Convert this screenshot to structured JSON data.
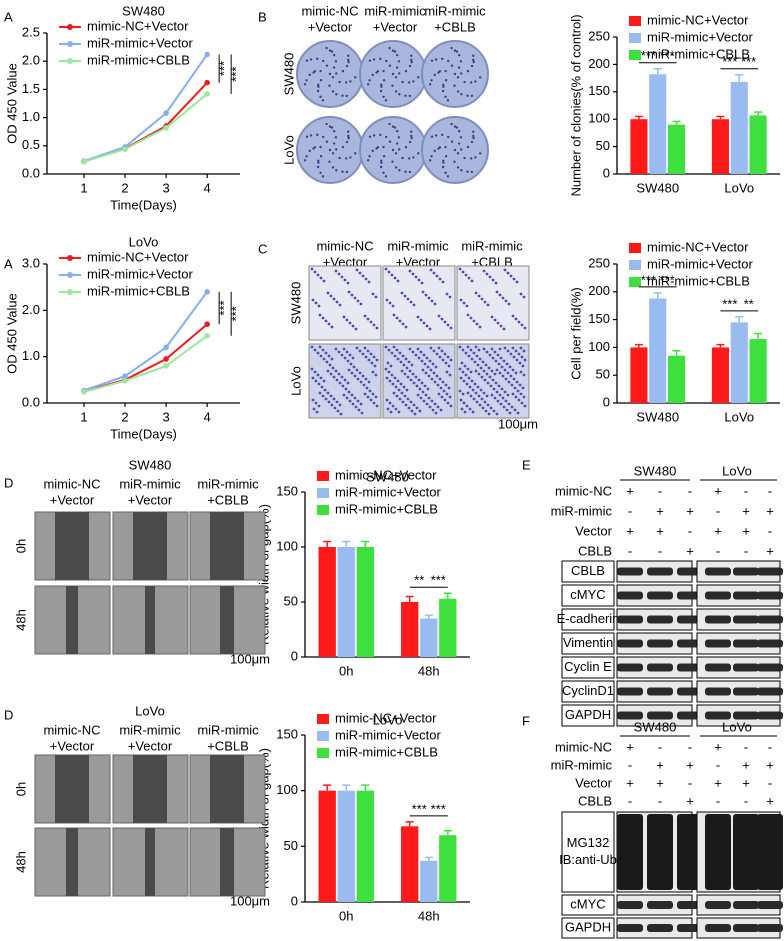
{
  "chart_data": [
    {
      "type": "line",
      "title": "SW480",
      "xlabel": "Time(Days)",
      "ylabel": "OD 450 Value",
      "legend": "upper left",
      "x": [
        1,
        2,
        3,
        4
      ],
      "xlim": [
        0.1,
        4.8
      ],
      "xticks": [
        1,
        2,
        3,
        4
      ],
      "ylim": [
        0,
        2.5
      ],
      "yticks": [
        {
          "value": 0,
          "label": "0.0"
        },
        0.5,
        {
          "value": 1,
          "label": "1.0"
        },
        1.5,
        {
          "value": 2,
          "label": "2.0"
        },
        2.5
      ],
      "series": [
        {
          "name": "mimic-NC+Vector",
          "color": "#ee1c1c",
          "values": [
            0.22,
            0.45,
            0.85,
            1.62
          ]
        },
        {
          "name": "miR-mimic+Vector",
          "color": "#86aef0",
          "values": [
            0.23,
            0.48,
            1.08,
            2.12
          ]
        },
        {
          "name": "miR-mimic+CBLB",
          "color": "#9be89b",
          "values": [
            0.22,
            0.44,
            0.82,
            1.42
          ]
        }
      ],
      "annotations": [
        "***",
        "***"
      ]
    },
    {
      "type": "line",
      "title": "LoVo",
      "xlabel": "Time(Days)",
      "ylabel": "OD 450 Value",
      "legend": "upper left",
      "x": [
        1,
        2,
        3,
        4
      ],
      "xlim": [
        0.1,
        4.8
      ],
      "xticks": [
        1,
        2,
        3,
        4
      ],
      "ylim": [
        0,
        3
      ],
      "yticks": [
        {
          "value": 0,
          "label": "0.0"
        },
        {
          "value": 1,
          "label": "1.0"
        },
        {
          "value": 2,
          "label": "2.0"
        },
        {
          "value": 3,
          "label": "3.0"
        }
      ],
      "series": [
        {
          "name": "mimic-NC+Vector",
          "color": "#ee1c1c",
          "values": [
            0.25,
            0.5,
            0.95,
            1.7
          ]
        },
        {
          "name": "miR-mimic+Vector",
          "color": "#86aef0",
          "values": [
            0.27,
            0.58,
            1.2,
            2.4
          ]
        },
        {
          "name": "miR-mimic+CBLB",
          "color": "#9be89b",
          "values": [
            0.24,
            0.48,
            0.8,
            1.45
          ]
        }
      ],
      "annotations": [
        "***",
        "***"
      ]
    },
    {
      "type": "bar",
      "ylabel": "Number of clonies(% of control)",
      "legend": "upper left",
      "categories": [
        "SW480",
        "LoVo"
      ],
      "ylim": [
        0,
        250
      ],
      "yticks": [
        0,
        50,
        100,
        150,
        200,
        250
      ],
      "series": [
        {
          "name": "mimic-NC+Vector",
          "color": "#ff1a1a",
          "values": [
            100,
            100
          ],
          "errors": [
            5,
            5
          ]
        },
        {
          "name": "miR-mimic+Vector",
          "color": "#99bbf0",
          "values": [
            182,
            168
          ],
          "errors": [
            10,
            13
          ]
        },
        {
          "name": "miR-mimic+CBLB",
          "color": "#3ee03e",
          "values": [
            90,
            107
          ],
          "errors": [
            6,
            6
          ]
        }
      ],
      "annotations": [
        "***",
        "***",
        "***",
        "***"
      ]
    },
    {
      "type": "bar",
      "ylabel": "Cell per field(%)",
      "legend": "upper left",
      "categories": [
        "SW480",
        "LoVo"
      ],
      "ylim": [
        0,
        250
      ],
      "yticks": [
        0,
        50,
        100,
        150,
        200,
        250
      ],
      "series": [
        {
          "name": "mimic-NC+Vector",
          "color": "#ff1a1a",
          "values": [
            100,
            100
          ],
          "errors": [
            5,
            5
          ]
        },
        {
          "name": "miR-mimic+Vector",
          "color": "#99bbf0",
          "values": [
            188,
            145
          ],
          "errors": [
            10,
            10
          ]
        },
        {
          "name": "miR-mimic+CBLB",
          "color": "#3ee03e",
          "values": [
            85,
            115
          ],
          "errors": [
            9,
            10
          ]
        }
      ],
      "annotations": [
        "***",
        "***",
        "***",
        "**"
      ]
    },
    {
      "type": "bar",
      "title": "SW480",
      "ylabel": "Relative width of gap(%)",
      "legend": "upper left",
      "categories": [
        "0h",
        "48h"
      ],
      "ylim": [
        0,
        150
      ],
      "yticks": [
        0,
        50,
        100,
        150
      ],
      "series": [
        {
          "name": "mimic-NC+Vector",
          "color": "#ff1a1a",
          "values": [
            100,
            50
          ],
          "errors": [
            5,
            5
          ]
        },
        {
          "name": "miR-mimic+Vector",
          "color": "#99bbf0",
          "values": [
            100,
            35
          ],
          "errors": [
            5,
            3
          ]
        },
        {
          "name": "miR-mimic+CBLB",
          "color": "#3ee03e",
          "values": [
            100,
            53
          ],
          "errors": [
            5,
            5
          ]
        }
      ],
      "annotations": [
        "**",
        "***"
      ]
    },
    {
      "type": "bar",
      "title": "LoVo",
      "ylabel": "Relative width of gap(%)",
      "legend": "upper left",
      "categories": [
        "0h",
        "48h"
      ],
      "ylim": [
        0,
        150
      ],
      "yticks": [
        0,
        50,
        100,
        150
      ],
      "series": [
        {
          "name": "mimic-NC+Vector",
          "color": "#ff1a1a",
          "values": [
            100,
            68
          ],
          "errors": [
            5,
            4
          ]
        },
        {
          "name": "miR-mimic+Vector",
          "color": "#99bbf0",
          "values": [
            100,
            37
          ],
          "errors": [
            5,
            3
          ]
        },
        {
          "name": "miR-mimic+CBLB",
          "color": "#3ee03e",
          "values": [
            100,
            60
          ],
          "errors": [
            5,
            4
          ]
        }
      ],
      "annotations": [
        "***",
        "***"
      ]
    }
  ],
  "figure": {
    "letters": [
      "A",
      "A",
      "B",
      "C",
      "D",
      "D",
      "E",
      "F"
    ],
    "colonies": {
      "columns": [
        [
          "mimic-NC",
          "+Vector"
        ],
        [
          "miR-mimic",
          "+Vector"
        ],
        [
          "miR-mimic",
          "+CBLB"
        ]
      ],
      "rows": [
        "SW480",
        "LoVo"
      ]
    },
    "transwell": {
      "columns": [
        [
          "mimic-NC",
          "+Vector"
        ],
        [
          "miR-mimic",
          "+Vector"
        ],
        [
          "miR-mimic",
          "+CBLB"
        ]
      ],
      "rows": [
        "SW480",
        "LoVo"
      ],
      "scale": "100μm"
    },
    "wound_sw480": {
      "title": "SW480",
      "columns": [
        [
          "mimic-NC",
          "+Vector"
        ],
        [
          "miR-mimic",
          "+Vector"
        ],
        [
          "miR-mimic",
          "+CBLB"
        ]
      ],
      "rows": [
        "0h",
        "48h"
      ],
      "scale": "100μm"
    },
    "wound_lovo": {
      "title": "LoVo",
      "columns": [
        [
          "mimic-NC",
          "+Vector"
        ],
        [
          "miR-mimic",
          "+Vector"
        ],
        [
          "miR-mimic",
          "+CBLB"
        ]
      ],
      "rows": [
        "0h",
        "48h"
      ],
      "scale": "100μm"
    },
    "blot_e": {
      "groups": [
        "SW480",
        "LoVo"
      ],
      "conditions": [
        {
          "name": "mimic-NC",
          "signs": [
            "+",
            "-",
            "-",
            "+",
            "-",
            "-"
          ]
        },
        {
          "name": "miR-mimic",
          "signs": [
            "-",
            "+",
            "+",
            "-",
            "+",
            "+"
          ]
        },
        {
          "name": "Vector",
          "signs": [
            "+",
            "+",
            "-",
            "+",
            "+",
            "-"
          ]
        },
        {
          "name": "CBLB",
          "signs": [
            "-",
            "-",
            "+",
            "-",
            "-",
            "+"
          ]
        }
      ],
      "bands": [
        [
          "CBLB"
        ],
        [
          "cMYC"
        ],
        [
          "E-cadherin"
        ],
        [
          "Vimentin"
        ],
        [
          "Cyclin E"
        ],
        [
          "CyclinD1"
        ],
        [
          "GAPDH"
        ]
      ]
    },
    "blot_f": {
      "groups": [
        "SW480",
        "LoVo"
      ],
      "conditions": [
        {
          "name": "mimic-NC",
          "signs": [
            "+",
            "-",
            "-",
            "+",
            "-",
            "-"
          ]
        },
        {
          "name": "miR-mimic",
          "signs": [
            "-",
            "+",
            "+",
            "-",
            "+",
            "+"
          ]
        },
        {
          "name": "Vector",
          "signs": [
            "+",
            "+",
            "-",
            "+",
            "+",
            "-"
          ]
        },
        {
          "name": "CBLB",
          "signs": [
            "-",
            "-",
            "+",
            "-",
            "-",
            "+"
          ]
        }
      ],
      "bands": [
        [
          "MG132",
          "IB:anti-Ub"
        ],
        [
          "cMYC"
        ],
        [
          "GAPDH"
        ]
      ]
    }
  }
}
